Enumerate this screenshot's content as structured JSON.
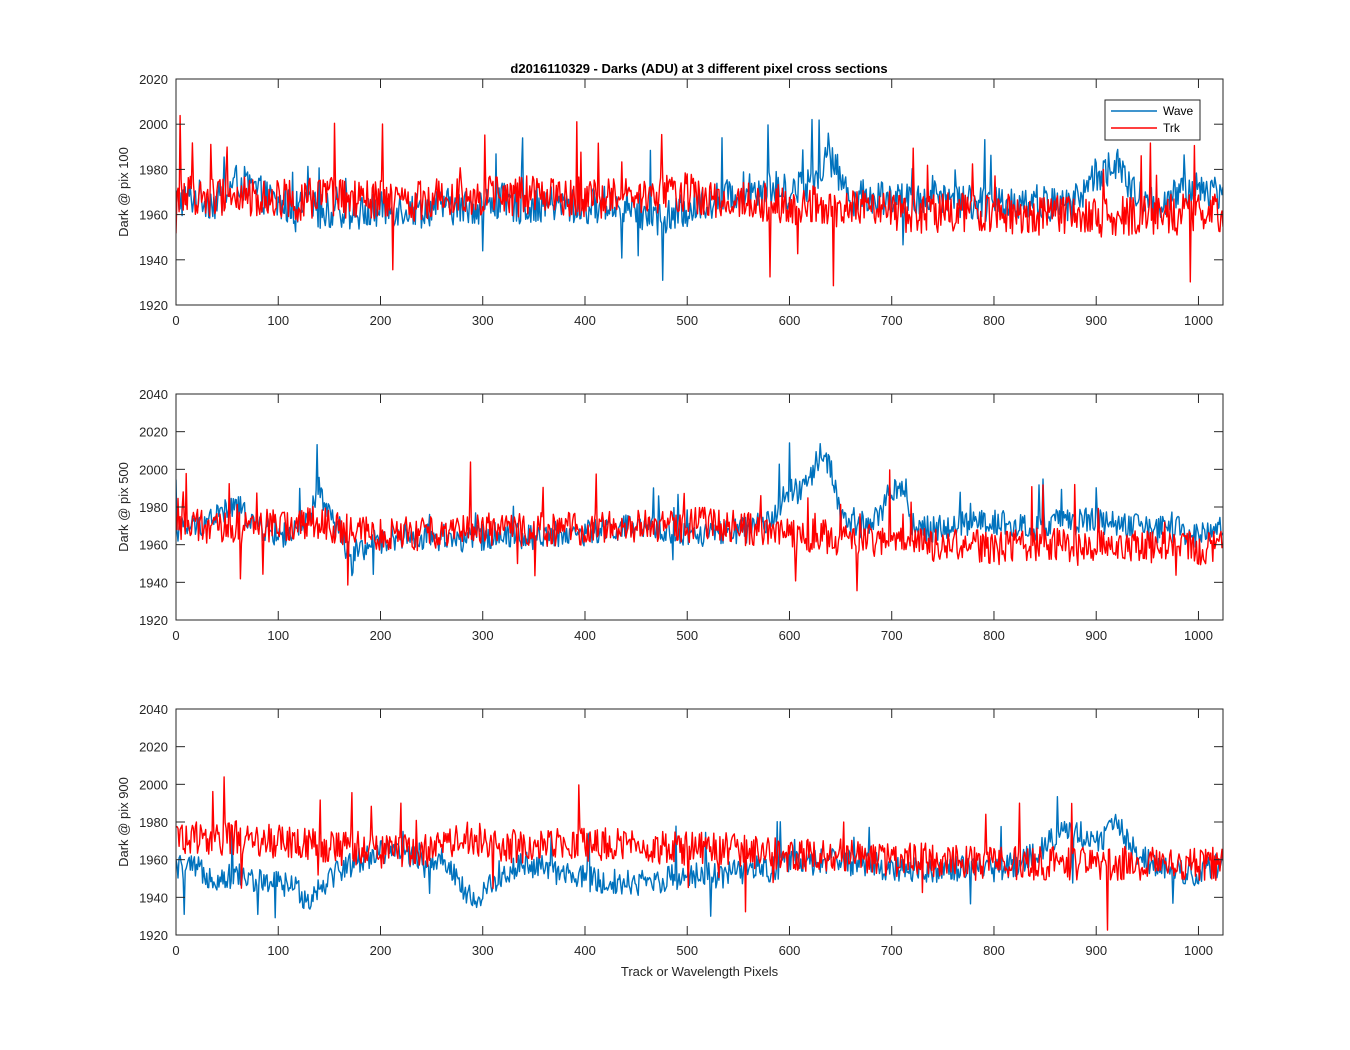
{
  "chart_data": [
    {
      "type": "line",
      "title": "d2016110329 - Darks (ADU) at 3 different pixel cross sections",
      "xlabel": "",
      "ylabel": "Dark @ pix 100",
      "xlim": [
        0,
        1024
      ],
      "ylim": [
        1920,
        2020
      ],
      "xticks": [
        0,
        100,
        200,
        300,
        400,
        500,
        600,
        700,
        800,
        900,
        1000
      ],
      "yticks": [
        1920,
        1940,
        1960,
        1980,
        2000,
        2020
      ],
      "legend": {
        "position": "top-right",
        "entries": [
          "Wave",
          "Trk"
        ]
      },
      "series": [
        {
          "name": "Wave",
          "color": "#0072bd",
          "x": [
            0,
            20,
            40,
            60,
            80,
            100,
            120,
            140,
            160,
            180,
            200,
            220,
            240,
            260,
            280,
            300,
            320,
            340,
            360,
            380,
            400,
            420,
            440,
            460,
            480,
            500,
            520,
            540,
            560,
            580,
            600,
            620,
            640,
            660,
            680,
            700,
            720,
            740,
            760,
            780,
            800,
            820,
            840,
            860,
            880,
            900,
            920,
            940,
            960,
            980,
            1000,
            1024
          ],
          "y": [
            1966,
            1968,
            1965,
            1975,
            1970,
            1964,
            1963,
            1962,
            1961,
            1960,
            1962,
            1963,
            1962,
            1964,
            1963,
            1964,
            1966,
            1963,
            1965,
            1964,
            1963,
            1965,
            1964,
            1960,
            1958,
            1962,
            1966,
            1968,
            1972,
            1972,
            1970,
            1974,
            1985,
            1967,
            1968,
            1968,
            1965,
            1970,
            1967,
            1966,
            1964,
            1966,
            1966,
            1964,
            1966,
            1978,
            1982,
            1967,
            1965,
            1968,
            1972,
            1970
          ],
          "noise": 8
        },
        {
          "name": "Trk",
          "color": "#ff0000",
          "x": [
            0,
            20,
            40,
            60,
            80,
            100,
            120,
            140,
            160,
            180,
            200,
            220,
            240,
            260,
            280,
            300,
            320,
            340,
            360,
            380,
            400,
            420,
            440,
            460,
            480,
            500,
            520,
            540,
            560,
            580,
            600,
            620,
            640,
            660,
            680,
            700,
            720,
            740,
            760,
            780,
            800,
            820,
            840,
            860,
            880,
            900,
            920,
            940,
            960,
            980,
            1000,
            1024
          ],
          "y": [
            1970,
            1968,
            1968,
            1968,
            1967,
            1968,
            1966,
            1968,
            1967,
            1966,
            1966,
            1966,
            1966,
            1968,
            1970,
            1968,
            1968,
            1968,
            1970,
            1968,
            1968,
            1967,
            1967,
            1968,
            1970,
            1970,
            1966,
            1966,
            1966,
            1966,
            1964,
            1964,
            1962,
            1962,
            1962,
            1962,
            1960,
            1960,
            1961,
            1960,
            1960,
            1960,
            1959,
            1960,
            1960,
            1958,
            1959,
            1960,
            1960,
            1960,
            1962,
            1960
          ],
          "noise": 9
        }
      ]
    },
    {
      "type": "line",
      "title": "",
      "xlabel": "",
      "ylabel": "Dark @ pix 500",
      "xlim": [
        0,
        1024
      ],
      "ylim": [
        1920,
        2040
      ],
      "xticks": [
        0,
        100,
        200,
        300,
        400,
        500,
        600,
        700,
        800,
        900,
        1000
      ],
      "yticks": [
        1920,
        1940,
        1960,
        1980,
        2000,
        2020,
        2040
      ],
      "series": [
        {
          "name": "Wave",
          "color": "#0072bd",
          "x": [
            0,
            20,
            40,
            60,
            80,
            100,
            120,
            130,
            140,
            150,
            160,
            170,
            180,
            200,
            220,
            240,
            260,
            280,
            300,
            320,
            340,
            360,
            380,
            400,
            420,
            440,
            460,
            480,
            500,
            520,
            540,
            560,
            580,
            590,
            600,
            610,
            620,
            630,
            640,
            650,
            660,
            680,
            690,
            700,
            710,
            720,
            740,
            760,
            780,
            800,
            820,
            840,
            860,
            880,
            900,
            920,
            940,
            960,
            980,
            1000,
            1024
          ],
          "y": [
            1968,
            1970,
            1976,
            1980,
            1970,
            1965,
            1966,
            1972,
            1990,
            1976,
            1966,
            1955,
            1958,
            1962,
            1965,
            1964,
            1966,
            1962,
            1964,
            1966,
            1964,
            1965,
            1966,
            1966,
            1968,
            1969,
            1968,
            1967,
            1965,
            1966,
            1966,
            1968,
            1972,
            1982,
            1988,
            1988,
            1994,
            2008,
            2002,
            1975,
            1970,
            1970,
            1978,
            1990,
            1988,
            1970,
            1968,
            1970,
            1972,
            1972,
            1970,
            1968,
            1972,
            1972,
            1974,
            1970,
            1970,
            1968,
            1968,
            1965,
            1968
          ],
          "noise": 7
        },
        {
          "name": "Trk",
          "color": "#ff0000",
          "x": [
            0,
            20,
            40,
            60,
            80,
            100,
            120,
            140,
            160,
            180,
            200,
            220,
            240,
            260,
            280,
            300,
            320,
            340,
            360,
            380,
            400,
            420,
            440,
            460,
            480,
            500,
            520,
            540,
            560,
            580,
            600,
            620,
            640,
            660,
            680,
            700,
            720,
            740,
            760,
            780,
            800,
            820,
            840,
            860,
            880,
            900,
            920,
            940,
            960,
            980,
            1000,
            1024
          ],
          "y": [
            1970,
            1970,
            1968,
            1968,
            1970,
            1970,
            1970,
            1972,
            1968,
            1966,
            1966,
            1966,
            1965,
            1968,
            1970,
            1968,
            1968,
            1968,
            1968,
            1968,
            1969,
            1970,
            1970,
            1970,
            1970,
            1970,
            1972,
            1970,
            1968,
            1966,
            1965,
            1965,
            1964,
            1962,
            1962,
            1962,
            1960,
            1960,
            1960,
            1960,
            1958,
            1959,
            1960,
            1960,
            1958,
            1958,
            1960,
            1960,
            1958,
            1960,
            1958,
            1958
          ],
          "noise": 9
        }
      ]
    },
    {
      "type": "line",
      "title": "",
      "xlabel": "Track or Wavelength Pixels",
      "ylabel": "Dark @ pix 900",
      "xlim": [
        0,
        1024
      ],
      "ylim": [
        1920,
        2040
      ],
      "xticks": [
        0,
        100,
        200,
        300,
        400,
        500,
        600,
        700,
        800,
        900,
        1000
      ],
      "yticks": [
        1920,
        1940,
        1960,
        1980,
        2000,
        2020,
        2040
      ],
      "series": [
        {
          "name": "Wave",
          "color": "#0072bd",
          "x": [
            0,
            20,
            40,
            60,
            80,
            100,
            120,
            130,
            140,
            160,
            180,
            200,
            220,
            240,
            260,
            270,
            280,
            290,
            300,
            320,
            340,
            360,
            380,
            400,
            420,
            440,
            460,
            480,
            500,
            520,
            540,
            560,
            580,
            600,
            620,
            640,
            660,
            680,
            700,
            720,
            740,
            760,
            780,
            800,
            820,
            840,
            860,
            880,
            900,
            910,
            920,
            940,
            960,
            980,
            1000,
            1024
          ],
          "y": [
            1956,
            1955,
            1950,
            1952,
            1948,
            1948,
            1944,
            1938,
            1946,
            1955,
            1960,
            1965,
            1962,
            1962,
            1960,
            1955,
            1945,
            1938,
            1942,
            1952,
            1958,
            1955,
            1952,
            1950,
            1948,
            1948,
            1948,
            1950,
            1952,
            1952,
            1952,
            1955,
            1955,
            1958,
            1958,
            1960,
            1958,
            1958,
            1955,
            1955,
            1955,
            1955,
            1955,
            1955,
            1958,
            1962,
            1972,
            1976,
            1968,
            1974,
            1980,
            1962,
            1958,
            1955,
            1952,
            1958
          ],
          "noise": 7
        },
        {
          "name": "Trk",
          "color": "#ff0000",
          "x": [
            0,
            20,
            40,
            60,
            80,
            100,
            120,
            140,
            160,
            180,
            200,
            220,
            240,
            260,
            280,
            300,
            320,
            340,
            360,
            380,
            400,
            420,
            440,
            460,
            480,
            500,
            520,
            540,
            560,
            580,
            600,
            620,
            640,
            660,
            680,
            700,
            720,
            740,
            760,
            780,
            800,
            820,
            840,
            860,
            880,
            900,
            920,
            940,
            960,
            980,
            1000,
            1024
          ],
          "y": [
            1972,
            1972,
            1970,
            1972,
            1970,
            1970,
            1968,
            1968,
            1966,
            1966,
            1964,
            1965,
            1965,
            1966,
            1972,
            1970,
            1968,
            1966,
            1970,
            1968,
            1968,
            1968,
            1968,
            1968,
            1966,
            1966,
            1966,
            1966,
            1964,
            1964,
            1962,
            1962,
            1962,
            1962,
            1960,
            1960,
            1960,
            1960,
            1960,
            1958,
            1958,
            1958,
            1958,
            1958,
            1958,
            1958,
            1958,
            1958,
            1958,
            1958,
            1958,
            1958
          ],
          "noise": 9
        }
      ]
    }
  ]
}
